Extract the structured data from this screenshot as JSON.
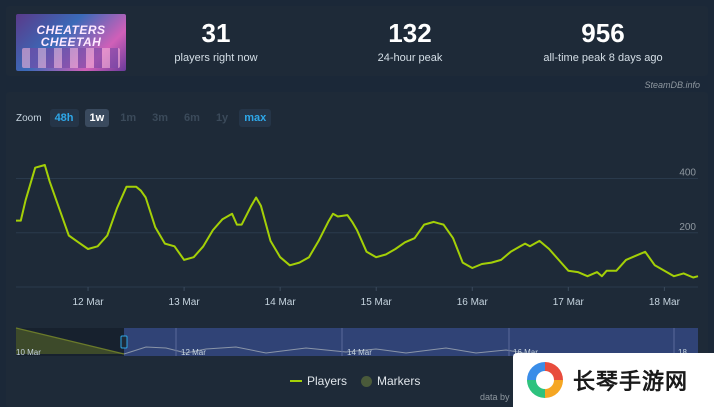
{
  "game": {
    "thumb_line1": "CHEATERS",
    "thumb_line2": "CHEETAH"
  },
  "stats": [
    {
      "value": "31",
      "label": "players right now"
    },
    {
      "value": "132",
      "label": "24-hour peak"
    },
    {
      "value": "956",
      "label": "all-time peak 8 days ago"
    }
  ],
  "credit": "SteamDB.info",
  "zoom": {
    "label": "Zoom",
    "buttons": [
      {
        "label": "48h",
        "state": "accent"
      },
      {
        "label": "1w",
        "state": "selected"
      },
      {
        "label": "1m",
        "state": "disabled"
      },
      {
        "label": "3m",
        "state": "disabled"
      },
      {
        "label": "6m",
        "state": "disabled"
      },
      {
        "label": "1y",
        "state": "disabled"
      },
      {
        "label": "max",
        "state": "accent"
      }
    ]
  },
  "chart_data": {
    "type": "line",
    "x_labels": [
      "12 Mar",
      "13 Mar",
      "14 Mar",
      "15 Mar",
      "16 Mar",
      "17 Mar",
      "18 Mar"
    ],
    "y_ticks": [
      0,
      200,
      400
    ],
    "ylim": [
      0,
      520
    ],
    "xlim": [
      11.25,
      18.35
    ],
    "grid": true,
    "series": [
      {
        "name": "Players",
        "color": "#a4d007",
        "x": [
          11.25,
          11.3,
          11.35,
          11.45,
          11.55,
          11.6,
          11.7,
          11.8,
          11.9,
          12.0,
          12.1,
          12.2,
          12.3,
          12.4,
          12.5,
          12.55,
          12.6,
          12.7,
          12.8,
          12.9,
          13.0,
          13.1,
          13.2,
          13.3,
          13.4,
          13.5,
          13.55,
          13.6,
          13.7,
          13.75,
          13.8,
          13.9,
          14.0,
          14.1,
          14.2,
          14.3,
          14.4,
          14.5,
          14.55,
          14.6,
          14.7,
          14.75,
          14.8,
          14.9,
          15.0,
          15.1,
          15.2,
          15.3,
          15.4,
          15.5,
          15.6,
          15.65,
          15.7,
          15.8,
          15.9,
          16.0,
          16.1,
          16.2,
          16.3,
          16.4,
          16.5,
          16.55,
          16.6,
          16.7,
          16.8,
          16.9,
          17.0,
          17.1,
          17.2,
          17.3,
          17.35,
          17.4,
          17.5,
          17.6,
          17.7,
          17.8,
          17.9,
          18.0,
          18.1,
          18.2,
          18.3,
          18.35
        ],
        "y": [
          245,
          245,
          320,
          440,
          450,
          390,
          290,
          190,
          165,
          140,
          150,
          190,
          290,
          370,
          370,
          355,
          330,
          220,
          160,
          150,
          100,
          110,
          150,
          210,
          250,
          270,
          230,
          230,
          300,
          330,
          300,
          170,
          110,
          80,
          90,
          110,
          170,
          240,
          270,
          260,
          265,
          240,
          210,
          130,
          110,
          120,
          140,
          165,
          180,
          230,
          240,
          235,
          230,
          180,
          90,
          70,
          85,
          90,
          100,
          130,
          150,
          160,
          150,
          170,
          140,
          100,
          60,
          55,
          40,
          55,
          40,
          60,
          60,
          100,
          115,
          130,
          80,
          60,
          40,
          50,
          35,
          40
        ]
      }
    ]
  },
  "navigator": {
    "labels": [
      "10 Mar",
      "12 Mar",
      "14 Mar",
      "16 Mar",
      "18"
    ]
  },
  "legend": [
    {
      "label": "Players"
    },
    {
      "label": "Markers"
    }
  ],
  "data_source": "data by",
  "watermark": "长琴手游网"
}
